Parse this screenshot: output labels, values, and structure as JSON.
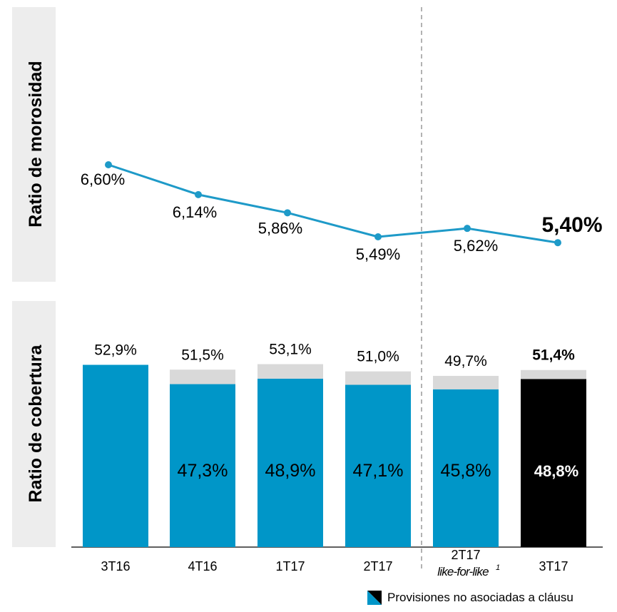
{
  "colors": {
    "line": "#1E9AC8",
    "bar_blue": "#0096C8",
    "bar_black": "#000000",
    "bar_grey": "#D9D9D9",
    "panel_bg": "#EDEDED",
    "divider": "#A0A0A0"
  },
  "panels": {
    "top_label": "Ratio de morosidad",
    "bottom_label": "Ratio de cobertura"
  },
  "legend": {
    "label": "Provisiones no asociadas a cláusu",
    "icon": "diagonal-split-swatch"
  },
  "chart_data": [
    {
      "type": "line",
      "categories": [
        "3T16",
        "4T16",
        "1T17",
        "2T17",
        "2T17 like-for-like¹",
        "3T17"
      ],
      "values": [
        6.6,
        6.14,
        5.86,
        5.49,
        5.62,
        5.4
      ],
      "labels": [
        "6,60%",
        "6,14%",
        "5,86%",
        "5,49%",
        "5,62%",
        "5,40%"
      ],
      "ylabel": "Ratio de morosidad",
      "highlight_last": true
    },
    {
      "type": "bar",
      "stacked": true,
      "categories": [
        "3T16",
        "4T16",
        "1T17",
        "2T17",
        "2T17",
        "3T17"
      ],
      "category_sublabels": [
        "",
        "",
        "",
        "",
        "like-for-like",
        ""
      ],
      "category_sublabel_superscript": [
        "",
        "",
        "",
        "",
        "1",
        ""
      ],
      "series": [
        {
          "values": [
            52.9,
            47.3,
            48.9,
            47.1,
            45.8,
            48.8
          ],
          "labels": [
            "",
            "47,3%",
            "48,9%",
            "47,1%",
            "45,8%",
            "48,8%"
          ]
        },
        {
          "name": "Provisiones no asociadas a cláusu",
          "values": [
            0,
            4.2,
            4.2,
            3.9,
            3.9,
            2.6
          ]
        }
      ],
      "totals": [
        52.9,
        51.5,
        53.1,
        51.0,
        49.7,
        51.4
      ],
      "total_labels": [
        "52,9%",
        "51,5%",
        "53,1%",
        "51,0%",
        "49,7%",
        "51,4%"
      ],
      "ylabel": "Ratio de cobertura",
      "highlight_last": true
    }
  ]
}
